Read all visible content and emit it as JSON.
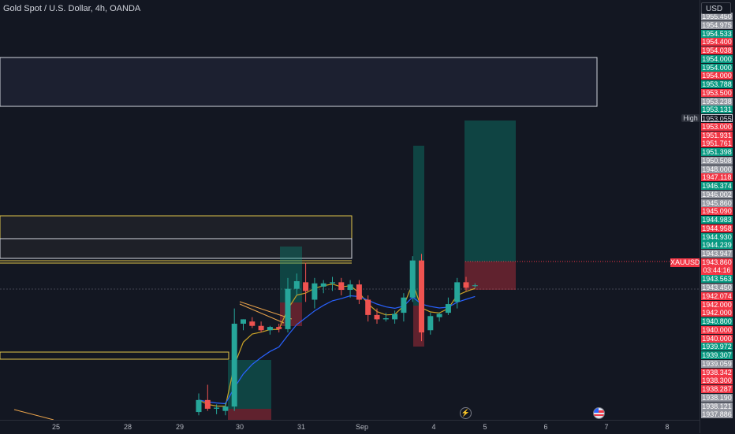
{
  "header": {
    "title": "Gold Spot / U.S. Dollar, 4h, OANDA",
    "currency": "USD"
  },
  "price_axis": {
    "labels": [
      {
        "value": "1955.450",
        "color": "#9598a1"
      },
      {
        "value": "1954.975",
        "color": "#9598a1"
      },
      {
        "value": "1954.533",
        "color": "#089981"
      },
      {
        "value": "1954.400",
        "color": "#f23645"
      },
      {
        "value": "1954.038",
        "color": "#f23645"
      },
      {
        "value": "1954.000",
        "color": "#089981"
      },
      {
        "value": "1954.000",
        "color": "#089981"
      },
      {
        "value": "1954.000",
        "color": "#f23645"
      },
      {
        "value": "1953.788",
        "color": "#089981"
      },
      {
        "value": "1953.500",
        "color": "#f23645"
      },
      {
        "value": "1953.238",
        "color": "#9598a1"
      },
      {
        "value": "1953.131",
        "color": "#089981"
      },
      {
        "value": "1953.055",
        "color": "#131722"
      },
      {
        "value": "1953.000",
        "color": "#f23645"
      },
      {
        "value": "1951.931",
        "color": "#f23645"
      },
      {
        "value": "1951.761",
        "color": "#f23645"
      },
      {
        "value": "1951.398",
        "color": "#089981"
      },
      {
        "value": "1950.508",
        "color": "#9598a1"
      },
      {
        "value": "1948.000",
        "color": "#9598a1"
      },
      {
        "value": "1947.118",
        "color": "#f23645"
      },
      {
        "value": "1946.374",
        "color": "#089981"
      },
      {
        "value": "1946.002",
        "color": "#9598a1"
      },
      {
        "value": "1945.860",
        "color": "#9598a1"
      },
      {
        "value": "1945.090",
        "color": "#f23645"
      },
      {
        "value": "1944.983",
        "color": "#089981"
      },
      {
        "value": "1944.958",
        "color": "#f23645"
      },
      {
        "value": "1944.930",
        "color": "#089981"
      },
      {
        "value": "1944.239",
        "color": "#089981"
      },
      {
        "value": "1943.947",
        "color": "#9598a1"
      },
      {
        "value": "1943.860",
        "color": "#f23645"
      },
      {
        "value": "03:44:16",
        "color": "#f23645"
      },
      {
        "value": "1943.563",
        "color": "#089981"
      },
      {
        "value": "1943.450",
        "color": "#9598a1"
      },
      {
        "value": "1942.074",
        "color": "#f23645"
      },
      {
        "value": "1942.000",
        "color": "#f23645"
      },
      {
        "value": "1942.000",
        "color": "#f23645"
      },
      {
        "value": "1940.800",
        "color": "#089981"
      },
      {
        "value": "1940.000",
        "color": "#f23645"
      },
      {
        "value": "1940.000",
        "color": "#f23645"
      },
      {
        "value": "1939.972",
        "color": "#089981"
      },
      {
        "value": "1939.307",
        "color": "#089981"
      },
      {
        "value": "1939.059",
        "color": "#9598a1"
      },
      {
        "value": "1938.342",
        "color": "#f23645"
      },
      {
        "value": "1938.300",
        "color": "#f23645"
      },
      {
        "value": "1938.287",
        "color": "#f23645"
      },
      {
        "value": "1938.190",
        "color": "#9598a1"
      },
      {
        "value": "1938.121",
        "color": "#9598a1"
      },
      {
        "value": "1937.886",
        "color": "#9598a1"
      }
    ],
    "high_tag": "High",
    "symbol_tag": "XAUUSD",
    "countdown": "03:44:16"
  },
  "time_axis": {
    "labels": [
      "25",
      "28",
      "29",
      "30",
      "31",
      "Sep",
      "4",
      "5",
      "6",
      "7",
      "8"
    ]
  },
  "events": {
    "lightning_icon": "lightning-icon",
    "flag_icon": "us-flag-icon"
  },
  "colors": {
    "up": "#26a69a",
    "down": "#ef5350",
    "ma_fast": "#c9a227",
    "ma_slow": "#2962ff",
    "background": "#131722"
  },
  "chart_data": {
    "type": "candlestick",
    "title": "Gold Spot / U.S. Dollar, 4h, OANDA",
    "ylim": [
      1937.8,
      1955.5
    ],
    "x_ticks": [
      "25",
      "28",
      "29",
      "30",
      "31",
      "Sep",
      "4",
      "5",
      "6",
      "7",
      "8"
    ],
    "candles": [
      {
        "o": 1938.05,
        "h": 1938.9,
        "l": 1937.9,
        "c": 1938.6
      },
      {
        "o": 1938.6,
        "h": 1939.3,
        "l": 1938.1,
        "c": 1938.2
      },
      {
        "o": 1938.2,
        "h": 1938.4,
        "l": 1937.95,
        "c": 1938.25
      },
      {
        "o": 1938.1,
        "h": 1938.5,
        "l": 1937.9,
        "c": 1938.3
      },
      {
        "o": 1938.3,
        "h": 1942.8,
        "l": 1938.1,
        "c": 1942.1
      },
      {
        "o": 1942.1,
        "h": 1942.3,
        "l": 1941.8,
        "c": 1942.3
      },
      {
        "o": 1942.2,
        "h": 1942.4,
        "l": 1941.9,
        "c": 1942.0
      },
      {
        "o": 1942.0,
        "h": 1942.2,
        "l": 1941.7,
        "c": 1941.8
      },
      {
        "o": 1941.8,
        "h": 1942.0,
        "l": 1941.6,
        "c": 1941.95
      },
      {
        "o": 1941.95,
        "h": 1942.1,
        "l": 1941.7,
        "c": 1941.85
      },
      {
        "o": 1941.85,
        "h": 1944.2,
        "l": 1941.7,
        "c": 1943.7
      },
      {
        "o": 1943.7,
        "h": 1944.4,
        "l": 1943.4,
        "c": 1944.05
      },
      {
        "o": 1944.0,
        "h": 1944.9,
        "l": 1943.1,
        "c": 1943.6
      },
      {
        "o": 1943.2,
        "h": 1944.2,
        "l": 1942.8,
        "c": 1943.95
      },
      {
        "o": 1943.8,
        "h": 1944.1,
        "l": 1943.5,
        "c": 1943.95
      },
      {
        "o": 1943.95,
        "h": 1944.25,
        "l": 1943.6,
        "c": 1944.0
      },
      {
        "o": 1944.0,
        "h": 1944.2,
        "l": 1943.4,
        "c": 1943.65
      },
      {
        "o": 1943.65,
        "h": 1944.1,
        "l": 1943.3,
        "c": 1943.9
      },
      {
        "o": 1943.9,
        "h": 1944.1,
        "l": 1943.0,
        "c": 1943.2
      },
      {
        "o": 1943.2,
        "h": 1943.4,
        "l": 1942.2,
        "c": 1942.5
      },
      {
        "o": 1942.5,
        "h": 1942.8,
        "l": 1942.1,
        "c": 1942.3
      },
      {
        "o": 1942.3,
        "h": 1942.6,
        "l": 1942.2,
        "c": 1942.35
      },
      {
        "o": 1942.3,
        "h": 1942.7,
        "l": 1942.1,
        "c": 1942.55
      },
      {
        "o": 1942.6,
        "h": 1943.5,
        "l": 1942.2,
        "c": 1943.3
      },
      {
        "o": 1943.3,
        "h": 1945.2,
        "l": 1943.1,
        "c": 1945.0
      },
      {
        "o": 1945.0,
        "h": 1945.3,
        "l": 1941.3,
        "c": 1941.7
      },
      {
        "o": 1941.8,
        "h": 1942.6,
        "l": 1941.6,
        "c": 1942.45
      },
      {
        "o": 1942.4,
        "h": 1942.6,
        "l": 1942.2,
        "c": 1942.55
      },
      {
        "o": 1942.6,
        "h": 1943.3,
        "l": 1942.5,
        "c": 1943.0
      },
      {
        "o": 1943.1,
        "h": 1944.2,
        "l": 1942.8,
        "c": 1944.0
      },
      {
        "o": 1944.0,
        "h": 1944.25,
        "l": 1943.6,
        "c": 1943.75
      },
      {
        "o": 1943.85,
        "h": 1943.95,
        "l": 1943.75,
        "c": 1943.86
      }
    ],
    "moving_averages": [
      {
        "name": "fast",
        "color": "#c9a227"
      },
      {
        "name": "slow",
        "color": "#2962ff"
      }
    ]
  }
}
